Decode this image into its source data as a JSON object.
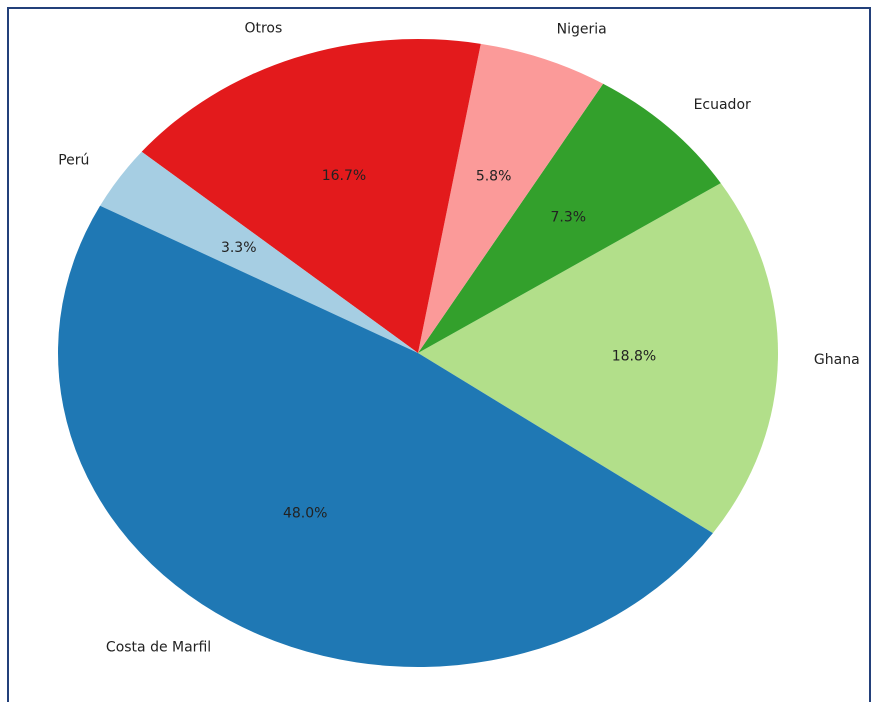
{
  "chart_data": {
    "type": "pie",
    "categories": [
      "Ghana",
      "Ecuador",
      "Nigeria",
      "Otros",
      "Perú",
      "Costa de Marfil"
    ],
    "values": [
      18.8,
      7.3,
      5.8,
      16.7,
      3.3,
      48.0
    ],
    "value_labels": [
      "18.8%",
      "7.3%",
      "5.8%",
      "16.7%",
      "3.3%",
      "48.0%"
    ],
    "colors": [
      "#b2df8a",
      "#33a02c",
      "#fb9a99",
      "#e31a1c",
      "#a6cee3",
      "#1f78b4"
    ]
  }
}
